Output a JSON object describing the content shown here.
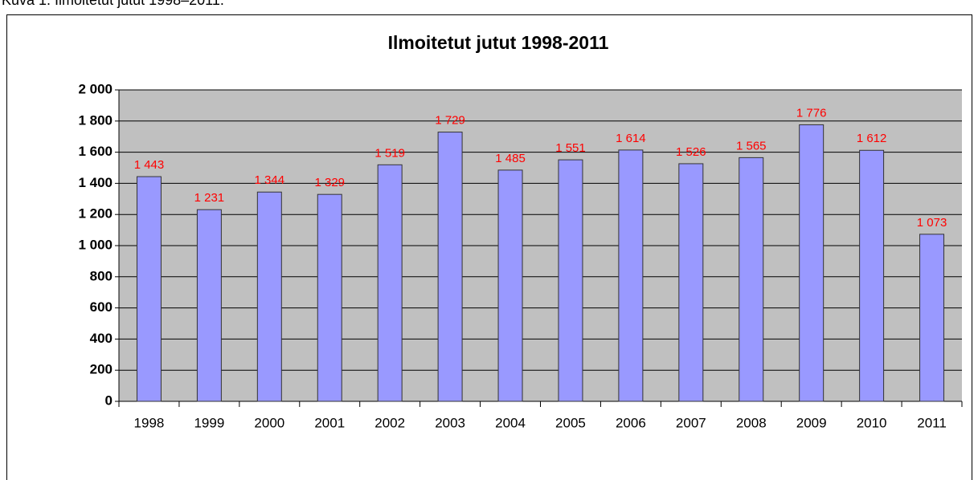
{
  "caption": "Kuva 1. Ilmoitetut jutut 1998–2011.",
  "chart_data": {
    "type": "bar",
    "title": "Ilmoitetut jutut 1998-2011",
    "categories": [
      "1998",
      "1999",
      "2000",
      "2001",
      "2002",
      "2003",
      "2004",
      "2005",
      "2006",
      "2007",
      "2008",
      "2009",
      "2010",
      "2011"
    ],
    "values": [
      1443,
      1231,
      1344,
      1329,
      1519,
      1729,
      1485,
      1551,
      1614,
      1526,
      1565,
      1776,
      1612,
      1073
    ],
    "value_labels": [
      "1 443",
      "1 231",
      "1 344",
      "1 329",
      "1 519",
      "1 729",
      "1 485",
      "1 551",
      "1 614",
      "1 526",
      "1 565",
      "1 776",
      "1 612",
      "1 073"
    ],
    "color": "#9999ff",
    "ylim": [
      0,
      2000
    ],
    "yticks": [
      0,
      200,
      400,
      600,
      800,
      {
        "value": 1000,
        "label": "1 000"
      },
      {
        "value": 1200,
        "label": "1 200"
      },
      {
        "value": 1400,
        "label": "1 400"
      },
      {
        "value": 1600,
        "label": "1 600"
      },
      {
        "value": 1800,
        "label": "1 800"
      },
      {
        "value": 2000,
        "label": "2 000"
      }
    ],
    "grid": true
  }
}
